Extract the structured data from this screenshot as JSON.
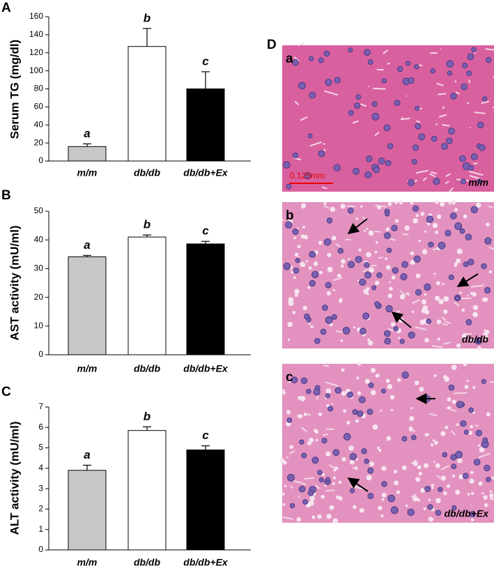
{
  "chart_data": [
    {
      "type": "bar",
      "panel_label": "A",
      "y_label": "Serum TG (mg/dl)",
      "categories": [
        "m/m",
        "db/db",
        "db/db+Ex"
      ],
      "values": [
        16,
        127,
        80
      ],
      "errors": [
        3,
        20,
        19
      ],
      "annotations": [
        "a",
        "b",
        "c"
      ],
      "colors": [
        "#c8c8c8",
        "#ffffff",
        "#000000"
      ],
      "ylim": [
        0,
        160
      ],
      "yticks": [
        0,
        20,
        40,
        60,
        80,
        100,
        120,
        140,
        160
      ]
    },
    {
      "type": "bar",
      "panel_label": "B",
      "y_label": "AST activity (mU/ml)",
      "categories": [
        "m/m",
        "db/db",
        "db/db+Ex"
      ],
      "values": [
        34.1,
        41,
        38.6
      ],
      "errors": [
        0.5,
        0.7,
        0.9
      ],
      "annotations": [
        "a",
        "b",
        "c"
      ],
      "colors": [
        "#c8c8c8",
        "#ffffff",
        "#000000"
      ],
      "ylim": [
        0,
        50
      ],
      "yticks": [
        0,
        10,
        20,
        30,
        40,
        50
      ]
    },
    {
      "type": "bar",
      "panel_label": "C",
      "y_label": "ALT activity (mU/ml)",
      "categories": [
        "m/m",
        "db/db",
        "db/db+Ex"
      ],
      "values": [
        3.9,
        5.85,
        4.9
      ],
      "errors": [
        0.25,
        0.18,
        0.2
      ],
      "annotations": [
        "a",
        "b",
        "c"
      ],
      "colors": [
        "#c8c8c8",
        "#ffffff",
        "#000000"
      ],
      "ylim": [
        0,
        7
      ],
      "yticks": [
        0,
        1,
        2,
        3,
        4,
        5,
        6,
        7
      ]
    }
  ],
  "panel_d": {
    "label": "D",
    "scale_bar": "0.125mm",
    "images": [
      {
        "label": "a",
        "caption": "m/m"
      },
      {
        "label": "b",
        "caption": "db/db"
      },
      {
        "label": "c",
        "caption": "db/db+Ex"
      }
    ]
  }
}
